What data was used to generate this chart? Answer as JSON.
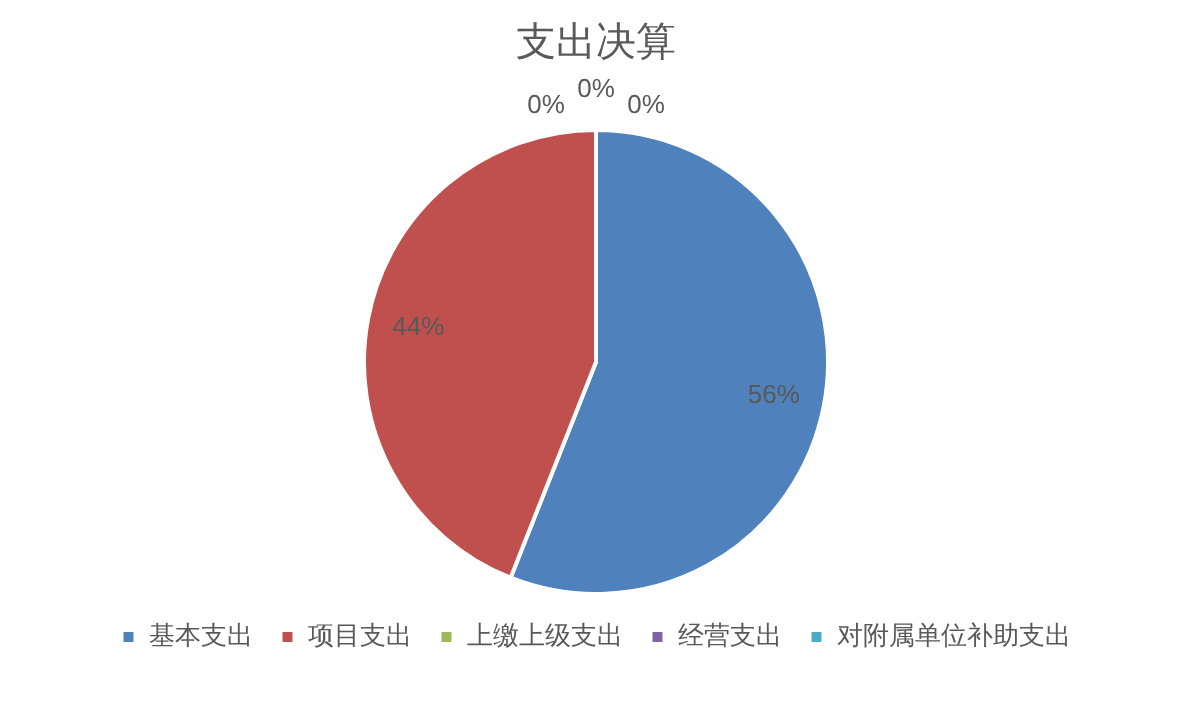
{
  "chart_data": {
    "type": "pie",
    "title": "支出决算",
    "categories": [
      "基本支出",
      "项目支出",
      "上缴上级支出",
      "经营支出",
      "对附属单位补助支出"
    ],
    "values": [
      56,
      44,
      0,
      0,
      0
    ],
    "colors": [
      "#4f81bd",
      "#c0504d",
      "#9bbb59",
      "#8064a2",
      "#4bacc6"
    ],
    "value_labels": [
      "56%",
      "44%",
      "0%",
      "0%",
      "0%"
    ],
    "legend": "bottom"
  }
}
